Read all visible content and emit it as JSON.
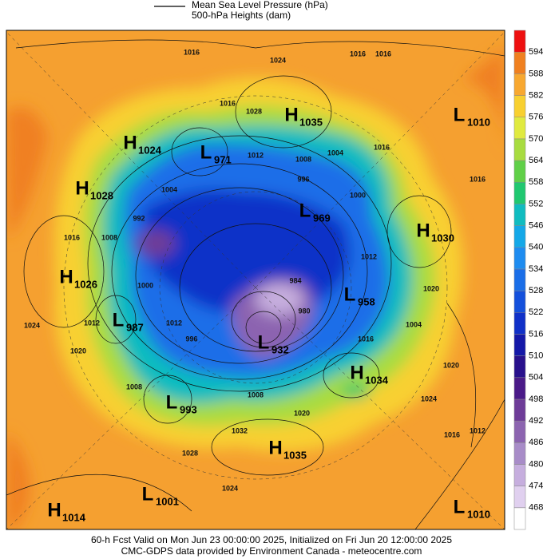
{
  "legend": {
    "pressure": "Mean Sea Level Pressure (hPa)",
    "heights": "500-hPa Heights (dam)"
  },
  "pressure_centers": [
    {
      "letter": "H",
      "value": 1024
    },
    {
      "letter": "H",
      "value": 1035
    },
    {
      "letter": "L",
      "value": 1010
    },
    {
      "letter": "L",
      "value": 971
    },
    {
      "letter": "H",
      "value": 1028
    },
    {
      "letter": "L",
      "value": 969
    },
    {
      "letter": "H",
      "value": 1030
    },
    {
      "letter": "H",
      "value": 1026
    },
    {
      "letter": "L",
      "value": 958
    },
    {
      "letter": "L",
      "value": 987
    },
    {
      "letter": "L",
      "value": 932
    },
    {
      "letter": "H",
      "value": 1034
    },
    {
      "letter": "L",
      "value": 993
    },
    {
      "letter": "H",
      "value": 1035
    },
    {
      "letter": "L",
      "value": 1001
    },
    {
      "letter": "H",
      "value": 1014
    },
    {
      "letter": "L",
      "value": 1010
    }
  ],
  "contour_labels": [
    1016,
    1016,
    1016,
    1024,
    1016,
    1028,
    1012,
    1008,
    1004,
    1016,
    1004,
    996,
    1000,
    1016,
    1012,
    1020,
    1016,
    1008,
    992,
    1000,
    1012,
    996,
    1024,
    1020,
    1012,
    1008,
    1016,
    1004,
    1020,
    1024,
    984,
    980,
    1008,
    1020,
    1032,
    1028,
    1016,
    1012,
    1024
  ],
  "colorbar": {
    "levels": [
      468,
      474,
      480,
      486,
      492,
      498,
      504,
      510,
      516,
      522,
      528,
      534,
      540,
      546,
      552,
      558,
      564,
      570,
      576,
      582,
      588,
      594
    ],
    "colors": [
      "#ffffff",
      "#e0d0ef",
      "#c6aede",
      "#a88cc8",
      "#8c64b0",
      "#6e3c98",
      "#4a1a88",
      "#28108c",
      "#1418a8",
      "#1030c8",
      "#1450dc",
      "#1a6ee8",
      "#1e8cf0",
      "#14a8e8",
      "#10bcc0",
      "#20c870",
      "#60d048",
      "#a8dc40",
      "#e0ea40",
      "#f8d030",
      "#f8a830",
      "#f08020",
      "#ee1010"
    ]
  },
  "footer": [
    "60-h Fcst Valid on Mon Jun 23 00:00:00 2025, Initialized on Fri Jun 20 12:00:00 2025",
    "CMC-GDPS data provided by Environment Canada - meteocentre.com"
  ]
}
